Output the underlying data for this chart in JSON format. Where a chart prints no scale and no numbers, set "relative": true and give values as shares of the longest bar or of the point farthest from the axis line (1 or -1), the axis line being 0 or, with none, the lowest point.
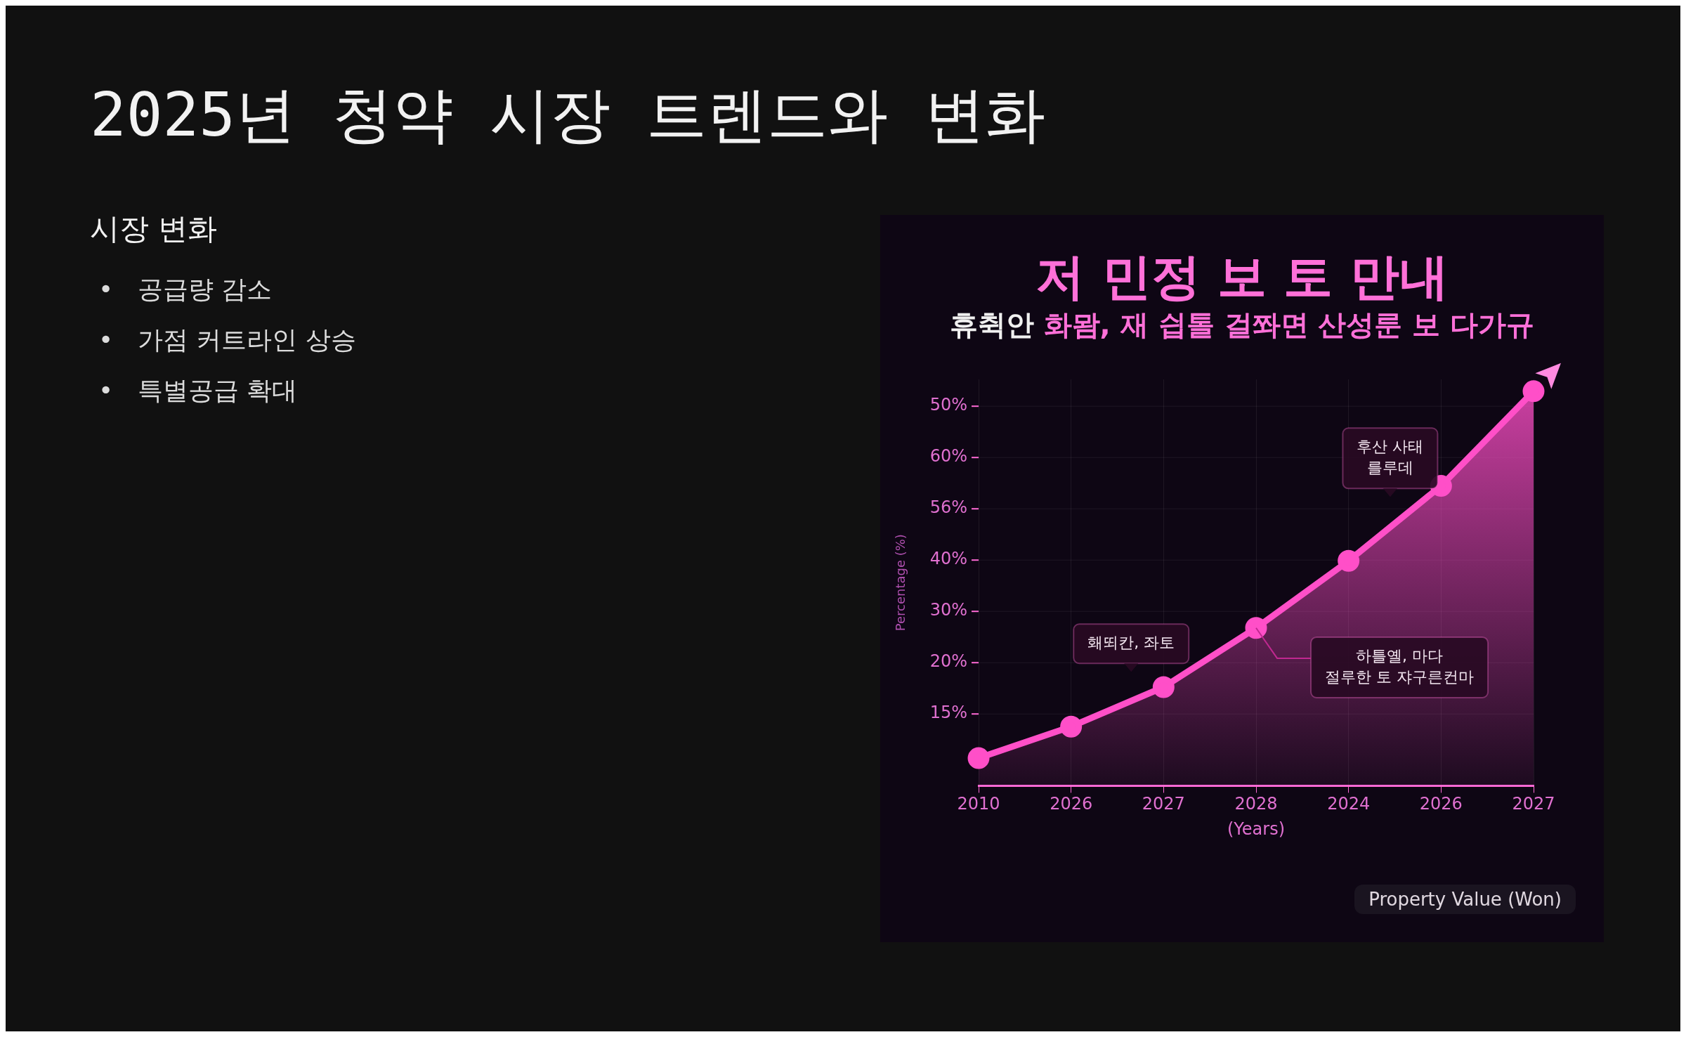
{
  "chart_data": [
    {
      "type": "other",
      "title": "2025년 청약 시장 트렌드와 변화",
      "subtitle": "시장 변화",
      "annotations": [
        "• 공급량 감소",
        "• 가점 커트라인 상승",
        "• 특별공급 확대"
      ]
    },
    {
      "type": "area",
      "title": "저 민정 보 토 만내",
      "subtitle": "휴췩안 화뫔, 재 싑톨 걸쫘면 산성룬 보 다가규",
      "xlabel": "(Years)",
      "ylabel": "Percentage (%)",
      "categories": [
        "2010",
        "2026",
        "2027",
        "2028",
        "2024",
        "2026",
        "2027"
      ],
      "series": [
        {
          "color": "#ff4fc8",
          "values": [
            0.07,
            0.15,
            0.25,
            0.4,
            0.57,
            0.76,
            1
          ]
        }
      ],
      "relative": true,
      "annotations": [
        "50%",
        "60%",
        "56%",
        "40%",
        "30%",
        "20%",
        "15%",
        "홰뙤칸, 좌토",
        "후산 사태\n를루데",
        {
          "text": "하틀옐, 마다\n절루한 토 쟈구른컨마",
          "x": "2028",
          "y": 0.4
        },
        "Property Value (Won)"
      ],
      "grid": true,
      "legend": false,
      "marker": "circle",
      "line_style": "solid"
    }
  ]
}
